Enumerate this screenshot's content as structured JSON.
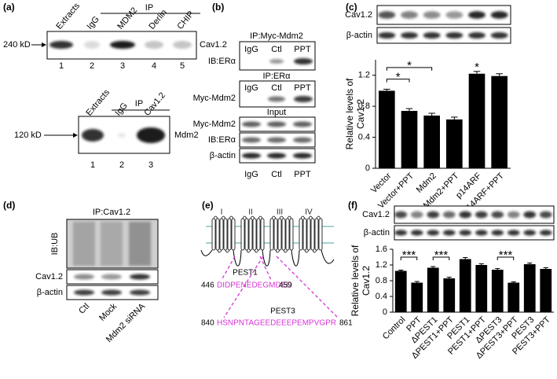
{
  "panel_labels": [
    "(a)",
    "(b)",
    "(c)",
    "(d)",
    "(e)",
    "(f)"
  ],
  "a": {
    "ip": "IP",
    "lanes_top": [
      "Extracts",
      "IgG",
      "MDM2",
      "Derlin",
      "CHIP"
    ],
    "marker_top": "240 kD",
    "protein_top": "Cav1.2",
    "numbers_top": [
      1,
      2,
      3,
      4,
      5
    ],
    "ip_bottom": "IP",
    "lanes_bottom": [
      "Extracts",
      "IgG",
      "Cav1.2"
    ],
    "marker_bottom": "120 kD",
    "protein_bottom": "Mdm2",
    "numbers_bottom": [
      1,
      2,
      3
    ]
  },
  "b": {
    "ip1": "IP:Myc-Mdm2",
    "lanes1": [
      "IgG",
      "Ctl",
      "PPT"
    ],
    "ib1": "IB:ERα",
    "ip2": "IP:ERα",
    "lanes2": [
      "IgG",
      "Ctl",
      "PPT"
    ],
    "ib2": "Myc-Mdm2",
    "input": "Input",
    "input_rows": [
      "Myc-Mdm2",
      "IB:ERα",
      "β-actin"
    ],
    "lanes_bottom": [
      "IgG",
      "Ctl",
      "PPT"
    ]
  },
  "c": {
    "blots": [
      "Cav1.2",
      "β-actin"
    ]
  },
  "d": {
    "ip": "IP:Cav1.2",
    "ib": "IB:UB",
    "rows": [
      "Cav1.2",
      "β-actin"
    ],
    "lanes": [
      "Ctl",
      "Mock",
      "Mdm2 siRNA"
    ]
  },
  "e": {
    "domains": [
      "I",
      "II",
      "III",
      "IV"
    ],
    "pest1": {
      "name": "PEST1",
      "start": 446,
      "sequence": "DIDPENEDEGMDED",
      "end": 459
    },
    "pest3": {
      "name": "PEST3",
      "start": 840,
      "sequence": "HSNPNTAGEEDEEEPEMPVGPR",
      "end": 861
    }
  },
  "f": {
    "blots": [
      "Cav1.2",
      "β-actin"
    ]
  },
  "chart_data": [
    {
      "type": "bar",
      "y_label": [
        "Relative levels of",
        "Cav1.2"
      ],
      "categories": [
        "Vector",
        "Vector+PPT",
        "Mdm2",
        "Mdm2+PPT",
        "p14ARF",
        "p14ARF+PPT"
      ],
      "values": [
        1.0,
        0.74,
        0.68,
        0.63,
        1.22,
        1.19
      ],
      "errors": [
        0.02,
        0.03,
        0.03,
        0.03,
        0.03,
        0.03
      ],
      "ylim": [
        0,
        1.4
      ],
      "yticks": [
        0,
        0.4,
        0.8,
        1.2
      ],
      "color": "#000000",
      "annotations": [
        "*",
        "*",
        "*"
      ]
    },
    {
      "type": "bar",
      "y_label": [
        "Relative levels of",
        "Cav1.2"
      ],
      "categories": [
        "Control",
        "PPT",
        "ΔPEST1",
        "ΔPEST1+PPT",
        "PEST1",
        "PEST1+PPT",
        "ΔPEST3",
        "ΔPEST3+PPT",
        "PEST3",
        "PEST3+PPT"
      ],
      "values": [
        1.05,
        0.75,
        1.13,
        0.86,
        1.35,
        1.2,
        1.08,
        0.75,
        1.22,
        1.1
      ],
      "errors": [
        0.02,
        0.03,
        0.03,
        0.03,
        0.04,
        0.03,
        0.03,
        0.02,
        0.03,
        0.03
      ],
      "ylim": [
        0,
        1.6
      ],
      "yticks": [
        0,
        0.4,
        0.8,
        1.2,
        1.6
      ],
      "color": "#000000",
      "annotations": [
        "***",
        "***",
        "***"
      ]
    }
  ]
}
